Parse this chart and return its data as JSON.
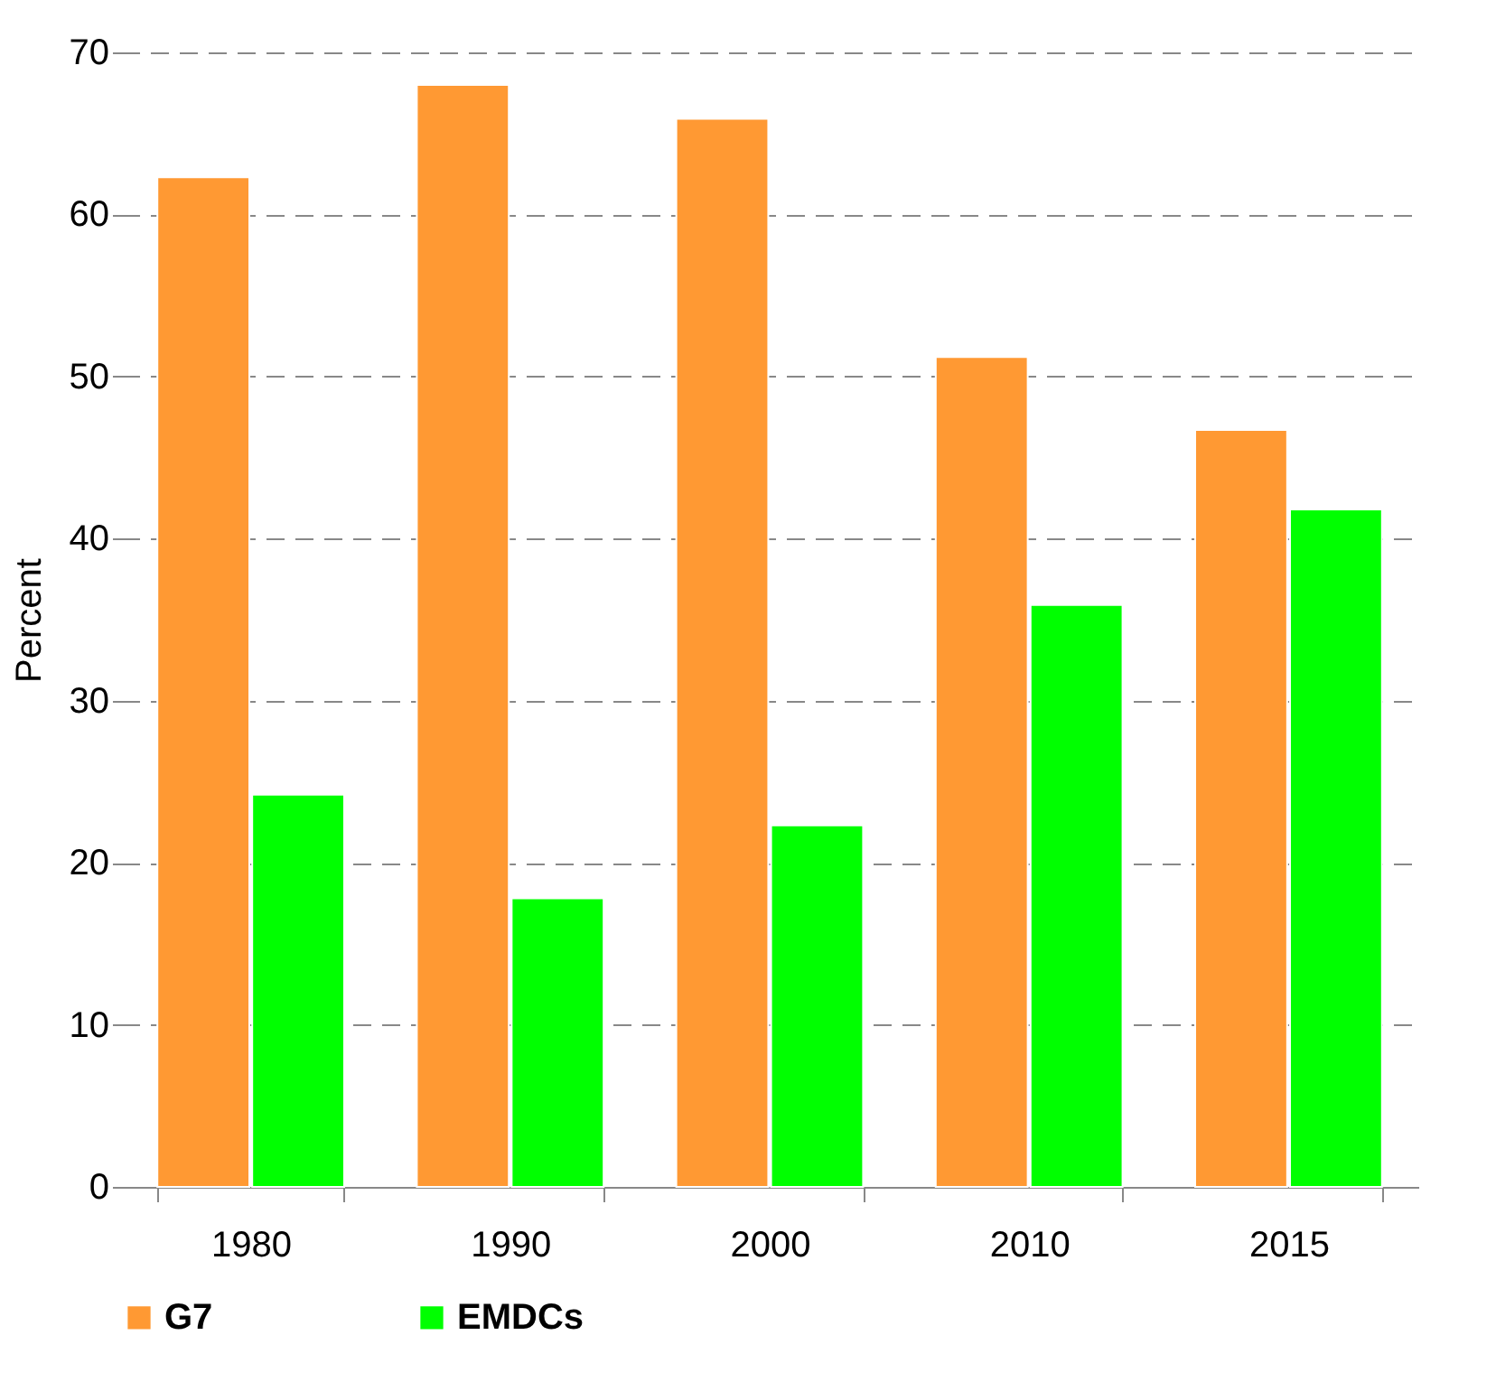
{
  "chart_data": {
    "type": "bar",
    "ylabel": "Percent",
    "categories": [
      "1980",
      "1990",
      "2000",
      "2010",
      "2015"
    ],
    "series": [
      {
        "name": "G7",
        "color": "#ff9933",
        "values": [
          62.3,
          68.0,
          65.9,
          51.2,
          46.7
        ]
      },
      {
        "name": "EMDCs",
        "color": "#00ff00",
        "values": [
          24.2,
          17.8,
          22.3,
          35.9,
          41.8
        ]
      }
    ],
    "ylim": [
      0,
      70
    ],
    "yticks": [
      0,
      10,
      20,
      30,
      40,
      50,
      60,
      70
    ],
    "grid": "y",
    "legend": "bottom"
  }
}
